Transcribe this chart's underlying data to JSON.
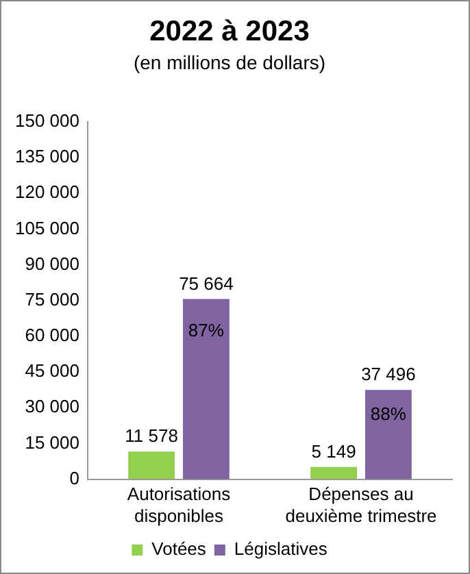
{
  "chart_data": {
    "type": "bar",
    "title": "2022 à 2023",
    "subtitle": "(en millions de dollars)",
    "categories": [
      "Autorisations disponibles",
      "Dépenses au deuxième trimestre"
    ],
    "series": [
      {
        "name": "Votées",
        "color": "#92d050",
        "values": [
          11578,
          5149
        ],
        "value_labels": [
          "11 578",
          "5 149"
        ]
      },
      {
        "name": "Législatives",
        "color": "#8064a2",
        "values": [
          75664,
          37496
        ],
        "value_labels": [
          "75 664",
          "37 496"
        ]
      }
    ],
    "ylim": [
      0,
      150000
    ],
    "yticks": [
      {
        "value": 0,
        "label": "0"
      },
      {
        "value": 15000,
        "label": "15 000"
      },
      {
        "value": 30000,
        "label": "30 000"
      },
      {
        "value": 45000,
        "label": "45 000"
      },
      {
        "value": 60000,
        "label": "60 000"
      },
      {
        "value": 75000,
        "label": "75 000"
      },
      {
        "value": 90000,
        "label": "90 000"
      },
      {
        "value": 105000,
        "label": "105 000"
      },
      {
        "value": 120000,
        "label": "120 000"
      },
      {
        "value": 135000,
        "label": "135 000"
      },
      {
        "value": 150000,
        "label": "150 000"
      }
    ],
    "annotations": [
      {
        "text": "87%",
        "x": "Autorisations disponibles",
        "y": 62000
      },
      {
        "text": "88%",
        "x": "Dépenses au deuxième trimestre",
        "y": 27000
      }
    ],
    "grid": false,
    "legend": "bottom"
  }
}
